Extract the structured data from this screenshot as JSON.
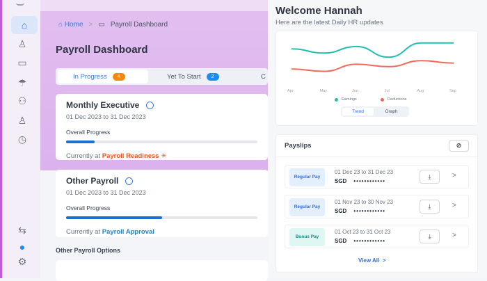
{
  "breadcrumb": {
    "home": "Home",
    "separator": ">",
    "current": "Payroll Dashboard"
  },
  "page_title": "Payroll Dashboard",
  "tabs": [
    {
      "label": "In Progress",
      "count": "4",
      "color": "#f5890b"
    },
    {
      "label": "Yet To Start",
      "count": "2",
      "color": "#1d8cf0"
    },
    {
      "label": "C"
    }
  ],
  "payrolls": [
    {
      "name": "Monthly Executive",
      "period": "01 Dec 2023 to 31 Dec 2023",
      "progress_label": "Overall Progress",
      "progress": 0.15,
      "current_prefix": "Currently at",
      "current_stage": "Payroll Readiness",
      "stage_color": "#f0541e"
    },
    {
      "name": "Other Payroll",
      "period": "01 Dec 2023 to 31 Dec 2023",
      "progress_label": "Overall Progress",
      "progress": 0.5,
      "current_prefix": "Currently at",
      "current_stage": "Payroll Approval",
      "stage_color": "#1f86c8"
    }
  ],
  "other_options_title": "Other Payroll Options",
  "welcome": {
    "title": "Welcome Hannah",
    "subtitle": "Here are the latest Daily HR updates"
  },
  "chart_data": {
    "type": "line",
    "categories": [
      "Apr",
      "May",
      "Jun",
      "Jul",
      "Aug",
      "Sep"
    ],
    "series": [
      {
        "name": "Earnings",
        "color": "#1fbfae",
        "values": [
          62,
          55,
          66,
          48,
          72,
          72
        ]
      },
      {
        "name": "Deductions",
        "color": "#f06a5a",
        "values": [
          28,
          24,
          36,
          32,
          42,
          38
        ]
      }
    ],
    "grid": false,
    "legend": "bottom"
  },
  "chart_toggle": {
    "trend": "Trend",
    "graph": "Graph",
    "active": "Trend"
  },
  "payslips": {
    "title": "Payslips",
    "items": [
      {
        "type": "Regular Pay",
        "period": "01 Dec 23 to 31 Dec 23",
        "currency": "SGD",
        "amount": "••••••••••••",
        "tag_bg": "#e3effd",
        "tag_color": "#2f6fdd"
      },
      {
        "type": "Regular Pay",
        "period": "01 Nov 23 to 30 Nov 23",
        "currency": "SGD",
        "amount": "••••••••••••",
        "tag_bg": "#e3effd",
        "tag_color": "#2f6fdd"
      },
      {
        "type": "Bonus Pay",
        "period": "01 Oct 23 to 31 Oct 23",
        "currency": "SGD",
        "amount": "••••••••••••",
        "tag_bg": "#def7f3",
        "tag_color": "#16917f"
      }
    ],
    "view_all": "View All",
    "view_all_icon": ">"
  },
  "icons": {
    "chevron": ">",
    "download": "⤓",
    "eye_off": "⊘"
  }
}
